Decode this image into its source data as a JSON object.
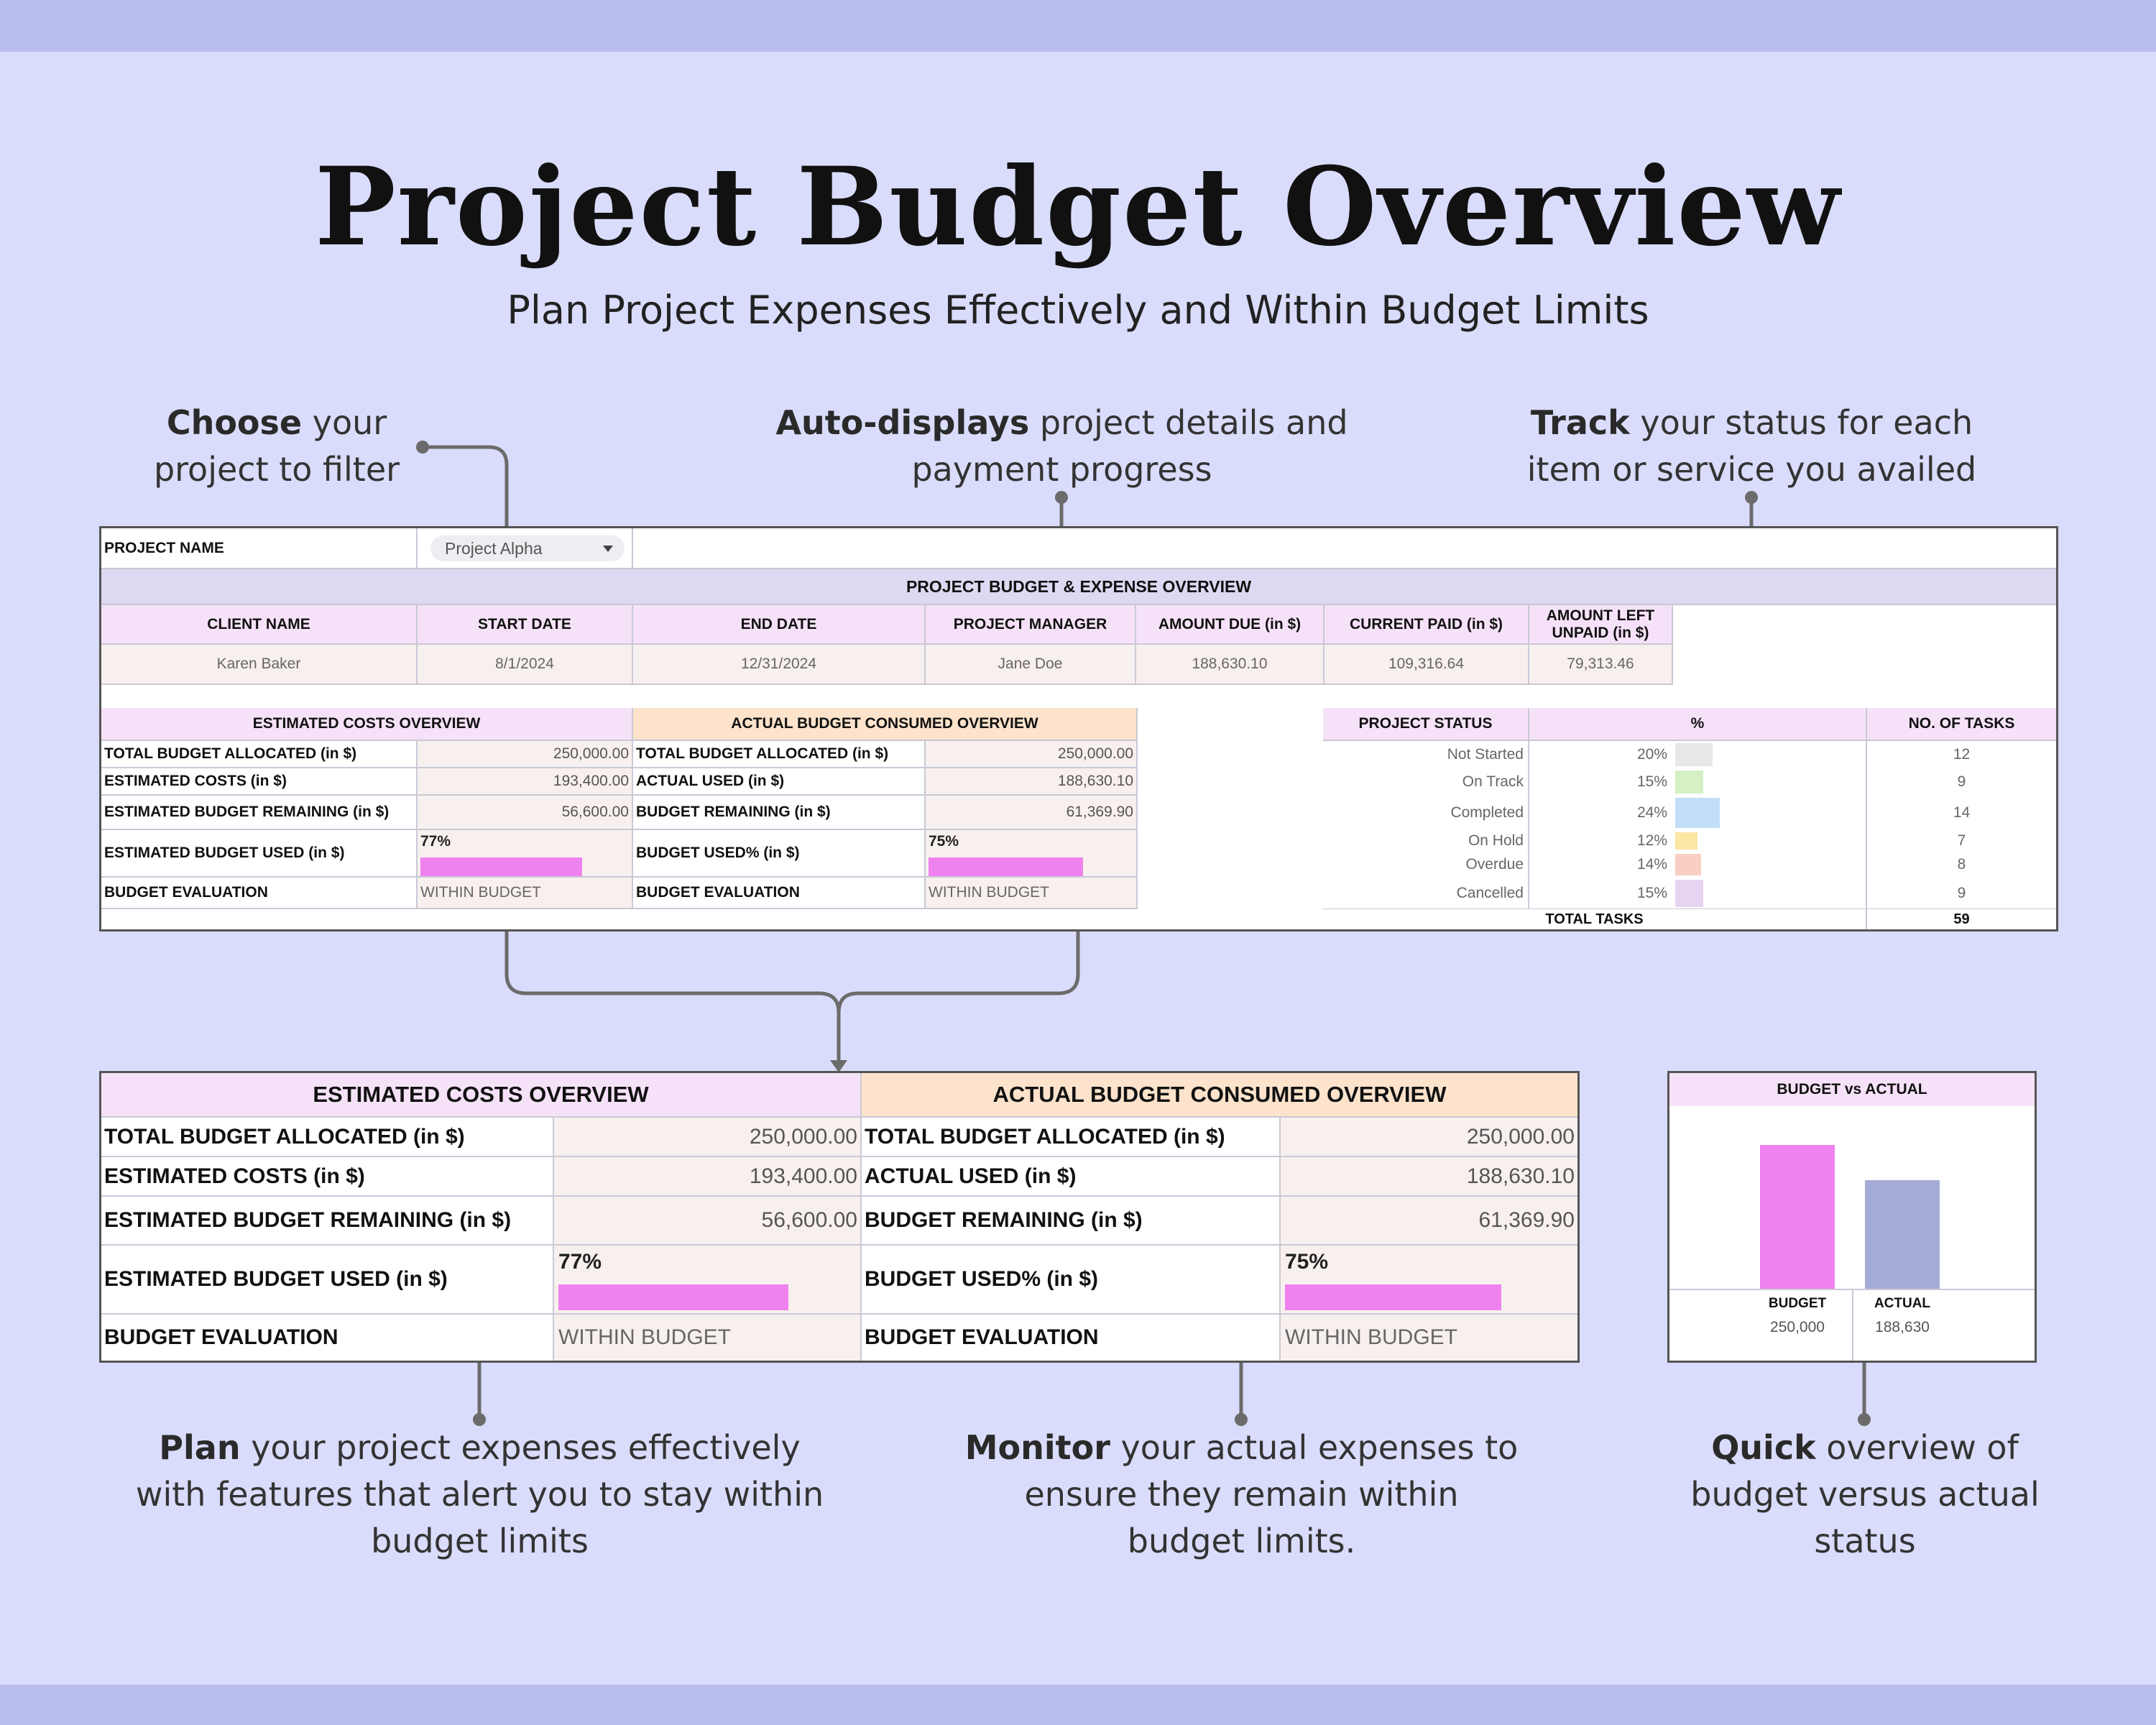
{
  "title": "Project Budget Overview",
  "subtitle": "Plan Project Expenses Effectively and Within Budget Limits",
  "annotations": {
    "choose": {
      "bold": "Choose",
      "rest1": " your",
      "line2": "project to filter"
    },
    "auto": {
      "bold": "Auto-displays",
      "rest1": " project details and",
      "line2": "payment progress"
    },
    "track": {
      "bold": "Track",
      "rest1": " your status for each",
      "line2": "item or service you availed"
    },
    "plan": {
      "bold": "Plan",
      "rest1": " your project expenses effectively",
      "line2": "with features that alert you to stay within",
      "line3": "budget limits"
    },
    "monitor": {
      "bold": "Monitor",
      "rest1": " your actual expenses to",
      "line2": "ensure they remain within",
      "line3": "budget limits."
    },
    "quick": {
      "bold": "Quick",
      "rest1": " overview of",
      "line2": "budget versus actual",
      "line3": "status"
    }
  },
  "project": {
    "label": "PROJECT NAME",
    "selected": "Project Alpha"
  },
  "overview": {
    "header": "PROJECT BUDGET & EXPENSE OVERVIEW",
    "columns": [
      "CLIENT NAME",
      "START DATE",
      "END DATE",
      "PROJECT MANAGER",
      "AMOUNT DUE (in $)",
      "CURRENT PAID (in $)",
      "AMOUNT LEFT",
      "UNPAID (in $)"
    ],
    "values": [
      "Karen Baker",
      "8/1/2024",
      "12/31/2024",
      "Jane Doe",
      "188,630.10",
      "109,316.64",
      "79,313.46"
    ]
  },
  "estimated": {
    "header": "ESTIMATED COSTS OVERVIEW",
    "rows": [
      {
        "label": "TOTAL BUDGET ALLOCATED (in $)",
        "value": "250,000.00"
      },
      {
        "label": "ESTIMATED COSTS (in $)",
        "value": "193,400.00"
      },
      {
        "label": "ESTIMATED BUDGET REMAINING (in $)",
        "value": "56,600.00"
      },
      {
        "label": "ESTIMATED BUDGET USED (in $)",
        "value": "77%"
      },
      {
        "label": "BUDGET EVALUATION",
        "value": "WITHIN BUDGET"
      }
    ],
    "used_fraction": 0.77
  },
  "actual": {
    "header": "ACTUAL BUDGET CONSUMED OVERVIEW",
    "rows": [
      {
        "label": "TOTAL BUDGET ALLOCATED (in $)",
        "value": "250,000.00"
      },
      {
        "label": "ACTUAL USED (in $)",
        "value": "188,630.10"
      },
      {
        "label": "BUDGET REMAINING (in $)",
        "value": "61,369.90"
      },
      {
        "label": "BUDGET USED% (in $)",
        "value": "75%"
      },
      {
        "label": "BUDGET EVALUATION",
        "value": "WITHIN BUDGET"
      }
    ],
    "used_fraction": 0.75
  },
  "status": {
    "headers": [
      "PROJECT STATUS",
      "%",
      "NO. OF TASKS"
    ],
    "rows": [
      {
        "name": "Not Started",
        "pct": "20%",
        "fraction": 0.2,
        "tasks": "12",
        "color": "#e8e8e8"
      },
      {
        "name": "On Track",
        "pct": "15%",
        "fraction": 0.15,
        "tasks": "9",
        "color": "#d4f0c4"
      },
      {
        "name": "Completed",
        "pct": "24%",
        "fraction": 0.24,
        "tasks": "14",
        "color": "#c2def8"
      },
      {
        "name": "On Hold",
        "pct": "12%",
        "fraction": 0.12,
        "tasks": "7",
        "color": "#fbe6a4"
      },
      {
        "name": "Overdue",
        "pct": "14%",
        "fraction": 0.14,
        "tasks": "8",
        "color": "#f9cfc4"
      },
      {
        "name": "Cancelled",
        "pct": "15%",
        "fraction": 0.15,
        "tasks": "9",
        "color": "#e6d4f2"
      }
    ],
    "total_label": "TOTAL TASKS",
    "total": "59"
  },
  "colors": {
    "bar": "#ef82ee",
    "actual_bar": "#a4abd6"
  },
  "chart_data": {
    "type": "bar",
    "title": "BUDGET vs ACTUAL",
    "categories": [
      "BUDGET",
      "ACTUAL"
    ],
    "values": [
      250000,
      188630
    ],
    "value_labels": [
      "250,000",
      "188,630"
    ],
    "colors": [
      "#ef82ee",
      "#a4abd6"
    ],
    "ylim": [
      0,
      250000
    ]
  }
}
